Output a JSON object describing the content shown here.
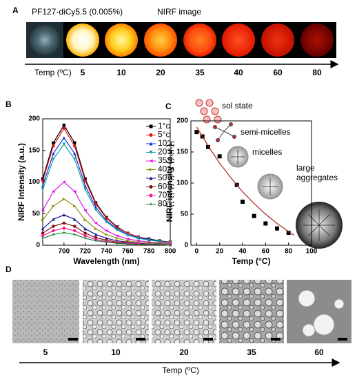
{
  "panel_a": {
    "label": "A",
    "sample": "PF127-diCy5.5 (0.005%)",
    "title": "NIRF image",
    "axis_label": "Temp (ºC)",
    "temps": [
      "5",
      "10",
      "20",
      "35",
      "40",
      "60",
      "80"
    ]
  },
  "chart_data": [
    {
      "type": "line",
      "panel": "B",
      "x_label": "Wavelength (nm)",
      "y_label": "NIRF Intensity (a.u.)",
      "x": [
        680,
        690,
        700,
        710,
        720,
        730,
        740,
        750,
        760,
        770,
        780,
        790,
        800
      ],
      "xlim": [
        680,
        800
      ],
      "xticks": [
        700,
        720,
        740,
        760,
        780,
        800
      ],
      "ylim": [
        0,
        200
      ],
      "yticks": [
        0,
        50,
        100,
        150,
        200
      ],
      "series": [
        {
          "name": "1°c",
          "color": "#000000",
          "marker": "square",
          "values": [
            105,
            162,
            190,
            162,
            105,
            67,
            44,
            29,
            19,
            13,
            10,
            7,
            5
          ]
        },
        {
          "name": "5°c",
          "color": "#e01010",
          "marker": "circle",
          "values": [
            102,
            157,
            185,
            157,
            102,
            65,
            43,
            28,
            19,
            13,
            9,
            6,
            5
          ]
        },
        {
          "name": "10°c",
          "color": "#1030e0",
          "marker": "triangle",
          "values": [
            94,
            145,
            170,
            145,
            94,
            60,
            39,
            26,
            17,
            12,
            9,
            6,
            4
          ]
        },
        {
          "name": "20°c",
          "color": "#10a0a0",
          "marker": "triangle-down",
          "values": [
            88,
            136,
            160,
            136,
            88,
            56,
            37,
            24,
            16,
            11,
            8,
            6,
            4
          ]
        },
        {
          "name": "35°c",
          "color": "#e010e0",
          "marker": "triangle-left",
          "values": [
            55,
            85,
            100,
            85,
            55,
            35,
            23,
            15,
            10,
            7,
            5,
            4,
            3
          ]
        },
        {
          "name": "40°c",
          "color": "#909010",
          "marker": "triangle-right",
          "values": [
            40,
            62,
            73,
            62,
            40,
            26,
            17,
            11,
            7,
            5,
            4,
            3,
            2
          ]
        },
        {
          "name": "50°c",
          "color": "#101090",
          "marker": "triangle",
          "values": [
            26,
            41,
            48,
            41,
            26,
            17,
            11,
            7,
            5,
            3,
            2,
            2,
            1
          ]
        },
        {
          "name": "60°c",
          "color": "#801010",
          "marker": "circle",
          "values": [
            19,
            30,
            35,
            30,
            19,
            12,
            8,
            5,
            4,
            2,
            2,
            1,
            1
          ]
        },
        {
          "name": "70°c",
          "color": "#f02090",
          "marker": "circle",
          "values": [
            15,
            23,
            27,
            23,
            15,
            9,
            6,
            4,
            3,
            2,
            1,
            1,
            1
          ]
        },
        {
          "name": "80°c",
          "color": "#108030",
          "marker": "star",
          "values": [
            11,
            17,
            20,
            17,
            11,
            7,
            5,
            3,
            2,
            1,
            1,
            1,
            0
          ]
        }
      ]
    },
    {
      "type": "scatter",
      "panel": "C",
      "x_label": "Temp (°C)",
      "y_label": "NIRF intensity (a.u.)",
      "xlim": [
        -5,
        100
      ],
      "xticks": [
        0,
        20,
        40,
        60,
        80,
        100
      ],
      "ylim": [
        0,
        200
      ],
      "yticks": [
        0,
        50,
        100,
        150,
        200
      ],
      "annotations": [
        "sol state",
        "semi-micelles",
        "micelles",
        "large aggregates"
      ],
      "series": [
        {
          "style": "markers",
          "marker": "square",
          "color": "#000000",
          "x": [
            0,
            5,
            10,
            20,
            35,
            40,
            50,
            60,
            70,
            80
          ],
          "values": [
            182,
            175,
            158,
            143,
            97,
            70,
            47,
            35,
            27,
            20
          ]
        },
        {
          "style": "line",
          "color": "#b02020",
          "x": [
            0,
            10,
            20,
            30,
            40,
            50,
            60,
            70,
            80,
            85
          ],
          "values": [
            190,
            160,
            132,
            108,
            86,
            67,
            50,
            35,
            22,
            16
          ]
        }
      ]
    }
  ],
  "panel_d": {
    "label": "D",
    "axis_label": "Temp (ºC)",
    "temps": [
      "5",
      "10",
      "20",
      "35",
      "60"
    ]
  }
}
